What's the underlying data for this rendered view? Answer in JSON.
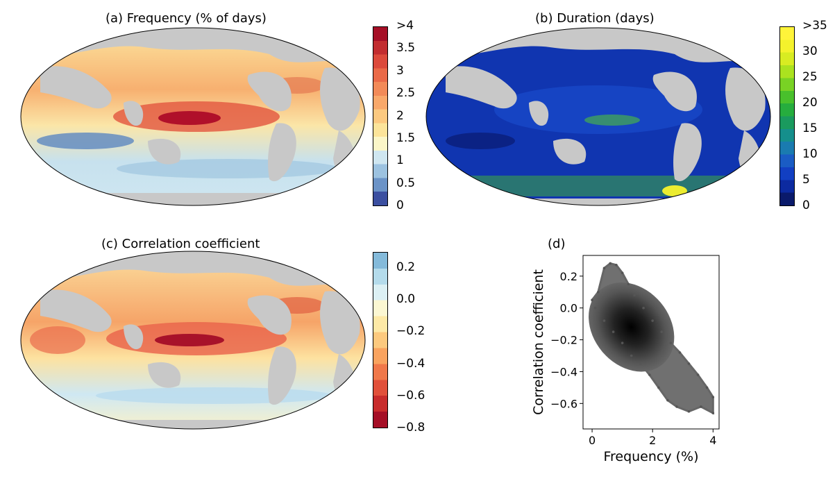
{
  "panels": {
    "a": {
      "title": "(a) Frequency (% of days)"
    },
    "b": {
      "title": "(b) Duration (days)"
    },
    "c": {
      "title": "(c) Correlation coefficient"
    },
    "d": {
      "title": "(d)"
    }
  },
  "colorbars": {
    "a": {
      "labels": [
        "0",
        "0.5",
        "1",
        "1.5",
        "2",
        "2.5",
        "3",
        "3.5",
        ">4"
      ],
      "colors": [
        "#3b4fa0",
        "#6b93c7",
        "#9cc2e0",
        "#cfe6f0",
        "#fbf6c8",
        "#fce49a",
        "#fcc980",
        "#f9a86a",
        "#f28a58",
        "#ea6a48",
        "#dc4a3c",
        "#c22d30",
        "#a50f26"
      ]
    },
    "b": {
      "labels": [
        "0",
        "5",
        "10",
        "15",
        "20",
        "25",
        "30",
        ">35"
      ],
      "colors": [
        "#0a1a6b",
        "#0c2aa0",
        "#123fc2",
        "#1a5cc4",
        "#1a7bb0",
        "#158f8c",
        "#1a9a5e",
        "#26ad3e",
        "#49c02c",
        "#79d224",
        "#abe21f",
        "#d8ec22",
        "#f4f22c",
        "#fff43a"
      ]
    },
    "c": {
      "labels": [
        "−0.8",
        "−0.6",
        "−0.4",
        "−0.2",
        "0.0",
        "0.2"
      ],
      "colors": [
        "#a50f26",
        "#c82c2c",
        "#e1503a",
        "#f0784a",
        "#f9a35f",
        "#fcc97e",
        "#fde9a6",
        "#fbf7d2",
        "#dcf0f4",
        "#b4dbeb",
        "#84bada"
      ]
    }
  },
  "chart_data": {
    "type": "scatter",
    "xlabel": "Frequency (%)",
    "ylabel": "Correlation coefficient",
    "xlim": [
      -0.3,
      4.2
    ],
    "ylim": [
      -0.76,
      0.33
    ],
    "xticks": [
      "0",
      "2",
      "4"
    ],
    "yticks": [
      "0.2",
      "0.0",
      "−0.2",
      "−0.4",
      "−0.6"
    ],
    "series": [
      {
        "values": [
          [
            0.2,
            0.1
          ],
          [
            0.4,
            0.25
          ],
          [
            0.6,
            0.28
          ],
          [
            0.8,
            0.27
          ],
          [
            1.0,
            0.22
          ],
          [
            1.2,
            0.15
          ],
          [
            1.4,
            0.08
          ],
          [
            1.7,
            0.0
          ],
          [
            2.0,
            -0.08
          ],
          [
            2.3,
            -0.15
          ],
          [
            2.6,
            -0.22
          ],
          [
            2.9,
            -0.28
          ],
          [
            3.2,
            -0.35
          ],
          [
            3.5,
            -0.42
          ],
          [
            3.8,
            -0.5
          ],
          [
            4.0,
            -0.56
          ],
          [
            4.0,
            -0.66
          ],
          [
            3.6,
            -0.62
          ],
          [
            3.2,
            -0.65
          ],
          [
            2.8,
            -0.62
          ],
          [
            2.5,
            -0.58
          ],
          [
            2.2,
            -0.5
          ],
          [
            1.9,
            -0.42
          ],
          [
            1.6,
            -0.35
          ],
          [
            1.3,
            -0.3
          ],
          [
            1.0,
            -0.22
          ],
          [
            0.7,
            -0.15
          ],
          [
            0.4,
            -0.08
          ],
          [
            0.1,
            0.0
          ],
          [
            0.0,
            0.05
          ]
        ]
      }
    ]
  }
}
